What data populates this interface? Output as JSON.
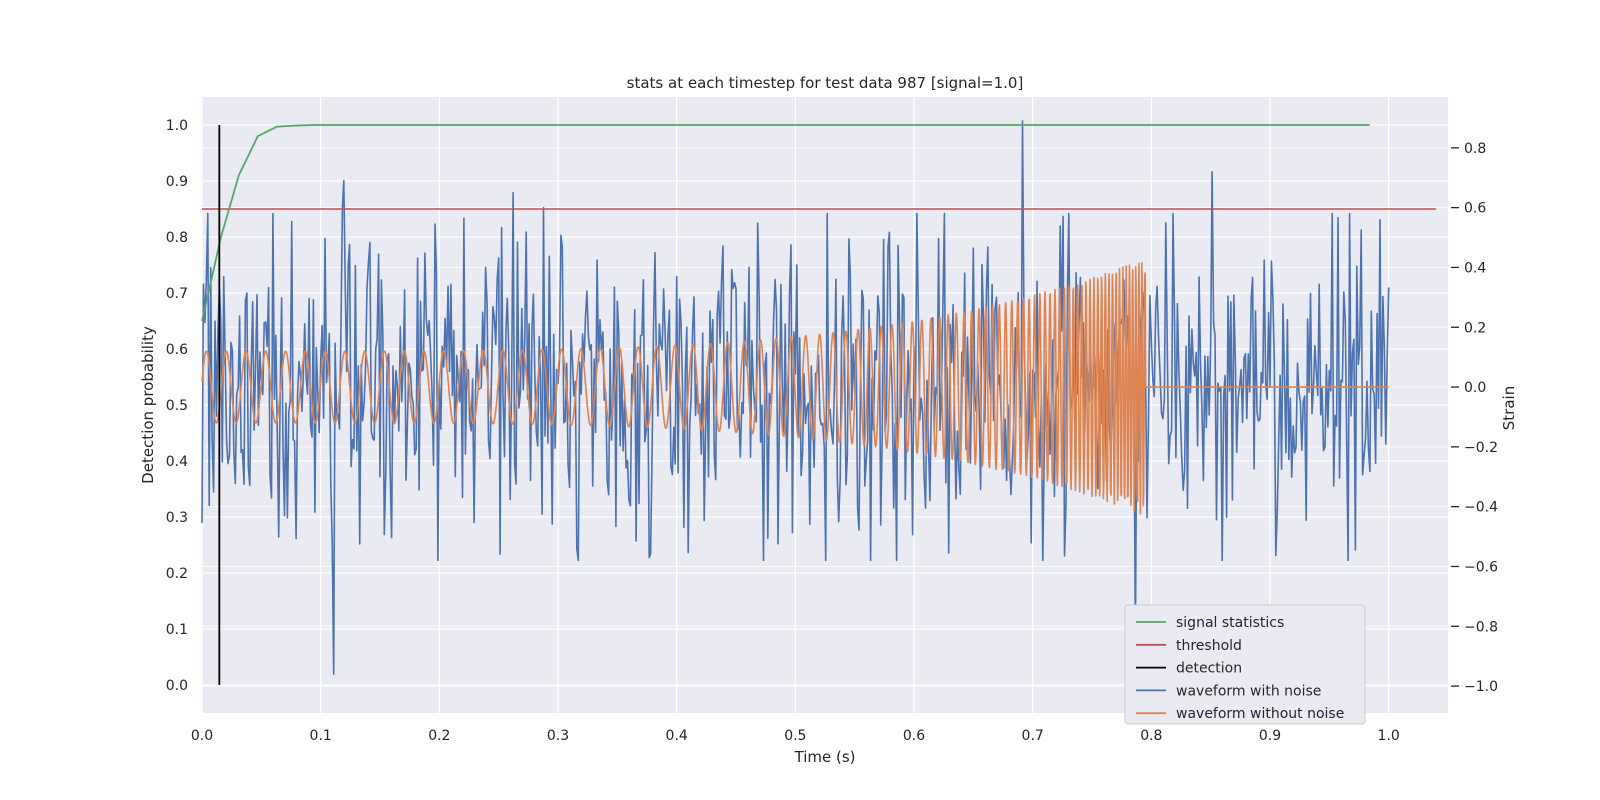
{
  "chart_data": {
    "type": "line",
    "title": "stats at each timestep for test data 987 [signal=1.0]",
    "xlabel": "Time (s)",
    "ylabel_left": "Detection probability",
    "ylabel_right": "Strain",
    "xlim": [
      0.0,
      1.05
    ],
    "ylim_left": [
      -0.05,
      1.05
    ],
    "ylim_right": [
      -1.09,
      0.97
    ],
    "x_ticks": [
      0.0,
      0.1,
      0.2,
      0.3,
      0.4,
      0.5,
      0.6,
      0.7,
      0.8,
      0.9,
      1.0
    ],
    "x_tick_labels": [
      "0.0",
      "0.1",
      "0.2",
      "0.3",
      "0.4",
      "0.5",
      "0.6",
      "0.7",
      "0.8",
      "0.9",
      "1.0"
    ],
    "y_left_ticks": [
      0.0,
      0.1,
      0.2,
      0.3,
      0.4,
      0.5,
      0.6,
      0.7,
      0.8,
      0.9,
      1.0
    ],
    "y_left_tick_labels": [
      "0.0",
      "0.1",
      "0.2",
      "0.3",
      "0.4",
      "0.5",
      "0.6",
      "0.7",
      "0.8",
      "0.9",
      "1.0"
    ],
    "y_right_ticks": [
      0.8,
      0.6,
      0.4,
      0.2,
      0.0,
      -0.2,
      -0.4,
      -0.6,
      -0.8,
      -1.0
    ],
    "y_right_tick_labels": [
      "0.8",
      "0.6",
      "0.4",
      "0.2",
      "0.0",
      "−0.2",
      "−0.4",
      "−0.6",
      "−0.8",
      "−1.0"
    ],
    "grid": true,
    "legend_position": "lower-right",
    "legend": [
      {
        "label": "signal statistics",
        "color": "#55a868"
      },
      {
        "label": "threshold",
        "color": "#c44e52"
      },
      {
        "label": "detection",
        "color": "#000000"
      },
      {
        "label": "waveform with noise",
        "color": "#4c72b0"
      },
      {
        "label": "waveform without noise",
        "color": "#dd8452"
      }
    ],
    "series": [
      {
        "name": "signal statistics",
        "axis": "left",
        "color": "#55a868",
        "x": [
          0.0,
          0.016,
          0.031,
          0.047,
          0.063,
          0.078,
          0.094,
          0.109,
          0.125,
          0.2,
          0.4,
          0.6,
          0.8,
          0.984
        ],
        "y": [
          0.65,
          0.8,
          0.91,
          0.98,
          0.997,
          0.999,
          1.0,
          1.0,
          1.0,
          1.0,
          1.0,
          1.0,
          1.0,
          1.0
        ]
      },
      {
        "name": "threshold",
        "axis": "left",
        "color": "#c44e52",
        "x": [
          0.0,
          1.04
        ],
        "y": [
          0.85,
          0.85
        ]
      },
      {
        "name": "detection",
        "axis": "left",
        "color": "#000000",
        "x": [
          0.0146,
          0.0146
        ],
        "y": [
          0.0,
          1.0
        ]
      },
      {
        "name": "waveform with noise",
        "axis": "right",
        "color": "#4c72b0",
        "note": "noisy strain, amplitude roughly +/-0.35 with spikes to 0.89 (t=0.692) and -0.96 (t=0.111)",
        "x_range": [
          0.0,
          1.0
        ],
        "noise_std": 0.25,
        "spikes": [
          {
            "x": 0.111,
            "y": -0.96
          },
          {
            "x": 0.119,
            "y": 0.69
          },
          {
            "x": 0.262,
            "y": 0.65
          },
          {
            "x": 0.692,
            "y": 0.89
          },
          {
            "x": 0.787,
            "y": -0.86
          },
          {
            "x": 0.851,
            "y": 0.72
          },
          {
            "x": 0.262,
            "y": 0.65
          },
          {
            "x": 0.288,
            "y": 0.6
          },
          {
            "x": 0.118,
            "y": 0.6
          }
        ]
      },
      {
        "name": "waveform without noise",
        "axis": "right",
        "color": "#dd8452",
        "note": "chirp: amplitude grows from ~0.12 to ~0.43, frequency grows from ~60 Hz to ~400 Hz, ends at t=0.795 then 0.0 until t=1.0",
        "x_range": [
          0.0,
          1.0
        ],
        "merger_time": 0.795,
        "start_amplitude": 0.12,
        "peak_amplitude": 0.43,
        "start_frequency_hz": 60,
        "peak_frequency_hz": 400
      }
    ]
  }
}
